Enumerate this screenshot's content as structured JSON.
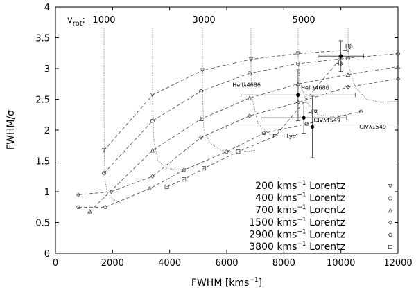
{
  "chart_data": {
    "type": "line",
    "xlabel": "FWHM [kms",
    "xlabel_sup": "−1",
    "xlabel_end": "]",
    "ylabel": "FWHM/σ",
    "xlim": [
      0,
      12000
    ],
    "ylim": [
      0,
      4
    ],
    "xticks": [
      "0",
      "2000",
      "4000",
      "6000",
      "8000",
      "10000",
      "12000"
    ],
    "yticks": [
      "0",
      "0.5",
      "1",
      "1.5",
      "2",
      "2.5",
      "3",
      "3.5",
      "4"
    ],
    "vrot_label": "v",
    "vrot_sub": "rot",
    "vrot_colon": ":",
    "vrot_values": [
      {
        "label": "1000",
        "x": 1700
      },
      {
        "label": "3000",
        "x": 5200
      },
      {
        "label": "5000",
        "x": 8700
      }
    ],
    "legend_location": "bottom-right",
    "legend": [
      {
        "text": "200 kms",
        "sup": "−1",
        "tail": " Lorentz",
        "marker": "triangle-down"
      },
      {
        "text": "400 kms",
        "sup": "−1",
        "tail": " Lorentz",
        "marker": "circle"
      },
      {
        "text": "700 kms",
        "sup": "−1",
        "tail": " Lorentz",
        "marker": "triangle-up"
      },
      {
        "text": "1500 kms",
        "sup": "−1",
        "tail": " Lorentz",
        "marker": "diamond"
      },
      {
        "text": "2900 kms",
        "sup": "−1",
        "tail": " Lorentz",
        "marker": "pentagon"
      },
      {
        "text": "3800 kms",
        "sup": "−1",
        "tail": " Lorentz",
        "marker": "square"
      }
    ],
    "series": [
      {
        "marker": "triangle-down",
        "points": [
          [
            1700,
            1.67
          ],
          [
            3400,
            2.57
          ],
          [
            5150,
            2.97
          ],
          [
            6850,
            3.15
          ],
          [
            8500,
            3.24
          ],
          [
            10250,
            3.3
          ]
        ]
      },
      {
        "marker": "circle",
        "points": [
          [
            1700,
            1.3
          ],
          [
            3400,
            2.15
          ],
          [
            5100,
            2.63
          ],
          [
            6800,
            2.92
          ],
          [
            8500,
            3.08
          ],
          [
            10250,
            3.17
          ],
          [
            12000,
            3.24
          ]
        ]
      },
      {
        "marker": "triangle-up",
        "points": [
          [
            1200,
            0.68
          ],
          [
            3400,
            1.67
          ],
          [
            5100,
            2.18
          ],
          [
            6800,
            2.52
          ],
          [
            8500,
            2.75
          ],
          [
            10250,
            2.9
          ],
          [
            12000,
            3.03
          ]
        ]
      },
      {
        "marker": "diamond",
        "points": [
          [
            800,
            0.95
          ],
          [
            1950,
            1.0
          ],
          [
            3400,
            1.25
          ],
          [
            5100,
            1.88
          ],
          [
            6800,
            2.23
          ],
          [
            8500,
            2.45
          ],
          [
            10250,
            2.7
          ],
          [
            12000,
            2.83
          ]
        ]
      },
      {
        "marker": "pentagon",
        "points": [
          [
            800,
            0.75
          ],
          [
            1750,
            0.75
          ],
          [
            3300,
            1.05
          ],
          [
            4500,
            1.35
          ],
          [
            6000,
            1.65
          ],
          [
            7300,
            1.95
          ],
          [
            8800,
            2.1
          ],
          [
            10700,
            2.3
          ]
        ]
      },
      {
        "marker": "square",
        "points": [
          [
            3900,
            1.08
          ],
          [
            4500,
            1.2
          ],
          [
            5200,
            1.38
          ],
          [
            6400,
            1.65
          ],
          [
            7700,
            1.9
          ],
          [
            10000,
            3.17
          ]
        ]
      }
    ],
    "rotation_curves": [
      {
        "points": [
          [
            1700,
            3.65
          ],
          [
            1700,
            2.5
          ],
          [
            1710,
            1.6
          ],
          [
            1740,
            1.2
          ],
          [
            1800,
            1.0
          ],
          [
            2000,
            0.88
          ],
          [
            2300,
            0.82
          ]
        ]
      },
      {
        "points": [
          [
            3400,
            3.65
          ],
          [
            3400,
            2.5
          ],
          [
            3450,
            1.8
          ],
          [
            3600,
            1.5
          ],
          [
            3900,
            1.38
          ],
          [
            4300,
            1.35
          ],
          [
            4800,
            1.4
          ]
        ]
      },
      {
        "points": [
          [
            5150,
            3.65
          ],
          [
            5150,
            2.6
          ],
          [
            5200,
            2.0
          ],
          [
            5400,
            1.8
          ],
          [
            5800,
            1.67
          ],
          [
            6300,
            1.64
          ],
          [
            7000,
            1.67
          ]
        ]
      },
      {
        "points": [
          [
            6850,
            3.65
          ],
          [
            6850,
            3.0
          ],
          [
            6900,
            2.5
          ],
          [
            7100,
            2.1
          ],
          [
            7500,
            1.93
          ],
          [
            8000,
            1.9
          ],
          [
            8500,
            1.93
          ]
        ]
      },
      {
        "points": [
          [
            8500,
            3.65
          ],
          [
            8500,
            3.2
          ],
          [
            8550,
            2.8
          ],
          [
            8800,
            2.45
          ],
          [
            9200,
            2.25
          ],
          [
            9700,
            2.22
          ],
          [
            10200,
            2.25
          ]
        ]
      },
      {
        "points": [
          [
            10250,
            3.65
          ],
          [
            10250,
            3.3
          ],
          [
            10300,
            3.0
          ],
          [
            10500,
            2.7
          ],
          [
            10900,
            2.5
          ],
          [
            11400,
            2.45
          ],
          [
            12000,
            2.47
          ]
        ]
      }
    ],
    "observations": [
      {
        "label": "Hβ",
        "x": 10000,
        "y": 3.2,
        "xerr": 800,
        "yerr": 0.25,
        "label_x": 10150,
        "label_y": 3.33
      },
      {
        "label": "Hβ",
        "x": 10000,
        "y": 3.2,
        "xerr": 0,
        "yerr": 0,
        "label_x": 9800,
        "label_y": 3.05
      },
      {
        "label": "HeIIλ4686",
        "x": 8500,
        "y": 2.57,
        "xerr": 2000,
        "yerr": 0.42,
        "label_x": 6200,
        "label_y": 2.7
      },
      {
        "label": "HeIIλ4686",
        "x": 8500,
        "y": 2.57,
        "xerr": 0,
        "yerr": 0,
        "label_x": 8600,
        "label_y": 2.66
      },
      {
        "label": "Lyα",
        "x": 8700,
        "y": 2.2,
        "xerr": 1500,
        "yerr": 0.25,
        "label_x": 8850,
        "label_y": 2.28
      },
      {
        "label": "Lyα",
        "x": 8700,
        "y": 2.2,
        "xerr": 0,
        "yerr": 0,
        "label_x": 8100,
        "label_y": 1.87
      },
      {
        "label": "CIVλ1549",
        "x": 9000,
        "y": 2.05,
        "xerr": 3000,
        "yerr": 0.5,
        "label_x": 9050,
        "label_y": 2.13
      },
      {
        "label": "CIVλ1549",
        "x": 9000,
        "y": 2.05,
        "xerr": 0,
        "yerr": 0,
        "label_x": 10650,
        "label_y": 2.02
      }
    ]
  }
}
